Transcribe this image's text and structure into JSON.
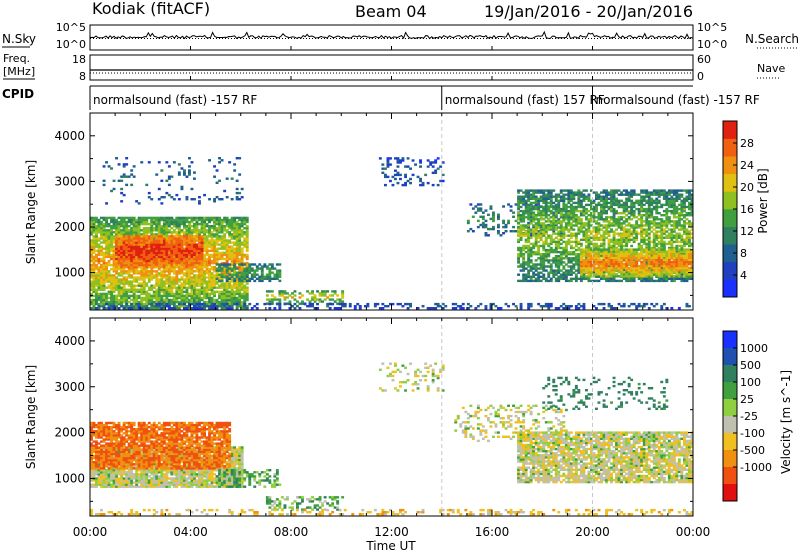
{
  "header": {
    "station": "Kodiak (fitACF)",
    "beam": "Beam 04",
    "dates": "19/Jan/2016 - 20/Jan/2016"
  },
  "noise_panel": {
    "left_label": "N.Sky",
    "right_label": "N.Search",
    "left_ticks": [
      "10^5",
      "10^0"
    ],
    "right_ticks": [
      "10^5",
      "10^0"
    ]
  },
  "freq_panel": {
    "left_label_line1": "Freq.",
    "left_label_line2": "[MHz]",
    "right_label": "Nave",
    "left_ticks": [
      "18",
      "8"
    ],
    "right_ticks": [
      "60",
      "0"
    ]
  },
  "cpid_panel": {
    "label": "CPID",
    "segments": [
      {
        "start_hour": 0,
        "end_hour": 14,
        "text": "normalsound (fast) -157 RF"
      },
      {
        "start_hour": 14,
        "end_hour": 20,
        "text": "normalsound (fast) 157 RF"
      },
      {
        "start_hour": 20,
        "end_hour": 24,
        "text": "normalsound (fast) -157 RF"
      }
    ]
  },
  "chart_data": [
    {
      "type": "heatmap",
      "ylabel": "Slant Range [km]",
      "colorbar_label": "Power [dB]",
      "ylim": [
        180,
        4500
      ],
      "xlim_hours": [
        0,
        24
      ],
      "yticks": [
        1000,
        2000,
        3000,
        4000
      ],
      "colorbar_ticks": [
        4,
        8,
        12,
        16,
        20,
        24,
        28
      ],
      "colorbar_range": [
        0,
        32
      ],
      "colorbar_colors": [
        "#1a30ff",
        "#2040c0",
        "#206090",
        "#308060",
        "#40a040",
        "#90c020",
        "#e0c010",
        "#f09010",
        "#f06010",
        "#e02010"
      ],
      "regions": [
        {
          "hours": [
            0,
            6.2
          ],
          "range_km": [
            200,
            2200
          ],
          "peak_db": 24,
          "background_db": 13,
          "density": 0.85
        },
        {
          "hours": [
            1,
            4.5
          ],
          "range_km": [
            1100,
            1800
          ],
          "peak_db": 30,
          "background_db": 24,
          "density": 0.95
        },
        {
          "hours": [
            5,
            7.5
          ],
          "range_km": [
            800,
            1200
          ],
          "peak_db": 15,
          "background_db": 9,
          "density": 0.6
        },
        {
          "hours": [
            7,
            10
          ],
          "range_km": [
            300,
            600
          ],
          "peak_db": 22,
          "background_db": 10,
          "density": 0.5
        },
        {
          "hours": [
            0.5,
            6
          ],
          "range_km": [
            2500,
            3500
          ],
          "peak_db": 9,
          "background_db": 6,
          "density": 0.08
        },
        {
          "hours": [
            11.5,
            14
          ],
          "range_km": [
            2900,
            3500
          ],
          "peak_db": 8,
          "background_db": 5,
          "density": 0.2
        },
        {
          "hours": [
            15,
            19
          ],
          "range_km": [
            1800,
            2500
          ],
          "peak_db": 12,
          "background_db": 7,
          "density": 0.25
        },
        {
          "hours": [
            17,
            24
          ],
          "range_km": [
            800,
            2800
          ],
          "peak_db": 18,
          "background_db": 10,
          "density": 0.7
        },
        {
          "hours": [
            19.5,
            24
          ],
          "range_km": [
            900,
            1500
          ],
          "peak_db": 26,
          "background_db": 17,
          "density": 0.9
        },
        {
          "hours": [
            0,
            24
          ],
          "range_km": [
            200,
            320
          ],
          "peak_db": 9,
          "background_db": 4,
          "density": 0.35
        }
      ]
    },
    {
      "type": "heatmap",
      "ylabel": "Slant Range [km]",
      "colorbar_label": "Velocity [m s^-1]",
      "ylim": [
        180,
        4500
      ],
      "xlim_hours": [
        0,
        24
      ],
      "yticks": [
        1000,
        2000,
        3000,
        4000
      ],
      "colorbar_ticks": [
        1000,
        500,
        100,
        25,
        -25,
        -100,
        -500,
        -1000
      ],
      "colorbar_colors": [
        "#1a30ff",
        "#2050b0",
        "#308060",
        "#40a040",
        "#90d040",
        "#c0c0b0",
        "#f0c020",
        "#f09010",
        "#f05010",
        "#e01010"
      ],
      "regions": [
        {
          "hours": [
            0,
            6
          ],
          "range_km": [
            800,
            1700
          ],
          "velocity": 0,
          "density": 0.9
        },
        {
          "hours": [
            0,
            5.5
          ],
          "range_km": [
            1200,
            2200
          ],
          "velocity": -300,
          "density": 0.85
        },
        {
          "hours": [
            5,
            7.5
          ],
          "range_km": [
            800,
            1200
          ],
          "velocity": 80,
          "density": 0.5
        },
        {
          "hours": [
            7,
            10
          ],
          "range_km": [
            300,
            600
          ],
          "velocity": 60,
          "density": 0.4
        },
        {
          "hours": [
            11.5,
            14
          ],
          "range_km": [
            2900,
            3500
          ],
          "velocity": 0,
          "density": 0.2
        },
        {
          "hours": [
            14.5,
            19
          ],
          "range_km": [
            1800,
            2600
          ],
          "velocity": 0,
          "density": 0.25
        },
        {
          "hours": [
            17,
            24
          ],
          "range_km": [
            900,
            2000
          ],
          "velocity": 0,
          "density": 0.8
        },
        {
          "hours": [
            18,
            23
          ],
          "range_km": [
            2500,
            3200
          ],
          "velocity": 150,
          "density": 0.2
        },
        {
          "hours": [
            0,
            24
          ],
          "range_km": [
            200,
            320
          ],
          "velocity": -60,
          "density": 0.3
        }
      ]
    }
  ],
  "xaxis": {
    "label": "Time UT",
    "ticks": [
      {
        "hour": 0,
        "label": "00:00"
      },
      {
        "hour": 4,
        "label": "04:00"
      },
      {
        "hour": 8,
        "label": "08:00"
      },
      {
        "hour": 12,
        "label": "12:00"
      },
      {
        "hour": 16,
        "label": "16:00"
      },
      {
        "hour": 20,
        "label": "20:00"
      },
      {
        "hour": 24,
        "label": "00:00"
      }
    ]
  },
  "cpid_change_hours": [
    14,
    20
  ]
}
